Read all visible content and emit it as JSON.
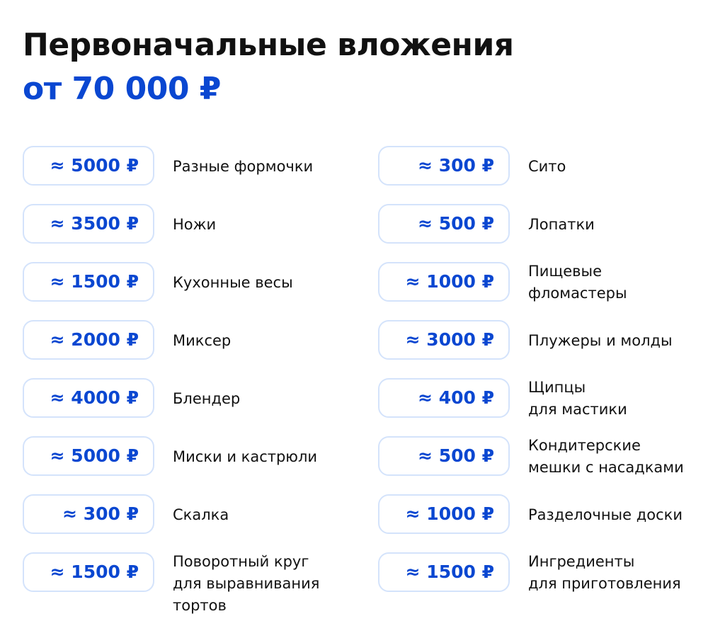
{
  "header": {
    "title": "Первоначальные вложения",
    "subtitle": "от 70 000 ₽"
  },
  "columns": [
    {
      "items": [
        {
          "price": "≈ 5000 ₽",
          "lines": [
            "Разные формочки"
          ]
        },
        {
          "price": "≈ 3500 ₽",
          "lines": [
            "Ножи"
          ]
        },
        {
          "price": "≈ 1500 ₽",
          "lines": [
            "Кухонные весы"
          ]
        },
        {
          "price": "≈ 2000 ₽",
          "lines": [
            "Миксер"
          ]
        },
        {
          "price": "≈ 4000 ₽",
          "lines": [
            "Блендер"
          ]
        },
        {
          "price": "≈ 5000 ₽",
          "lines": [
            "Миски и кастрюли"
          ]
        },
        {
          "price": "≈ 300 ₽",
          "lines": [
            "Скалка"
          ]
        },
        {
          "price": "≈ 1500 ₽",
          "lines": [
            "Поворотный круг",
            "для выравнивания",
            "тортов"
          ]
        }
      ]
    },
    {
      "items": [
        {
          "price": "≈ 300 ₽",
          "lines": [
            "Сито"
          ]
        },
        {
          "price": "≈ 500 ₽",
          "lines": [
            "Лопатки"
          ]
        },
        {
          "price": "≈ 1000 ₽",
          "lines": [
            "Пищевые",
            "фломастеры"
          ]
        },
        {
          "price": "≈ 3000 ₽",
          "lines": [
            "Плужеры и молды"
          ]
        },
        {
          "price": "≈ 400 ₽",
          "lines": [
            "Щипцы",
            "для мастики"
          ]
        },
        {
          "price": "≈ 500 ₽",
          "lines": [
            "Кондитерские",
            "мешки с насадками"
          ]
        },
        {
          "price": "≈ 1000 ₽",
          "lines": [
            "Разделочные доски"
          ]
        },
        {
          "price": "≈ 1500 ₽",
          "lines": [
            "Ингредиенты",
            "для приготовления"
          ]
        }
      ]
    }
  ]
}
